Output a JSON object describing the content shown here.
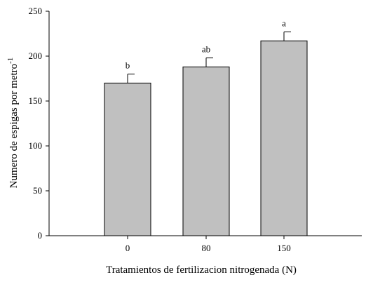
{
  "chart_data": {
    "type": "bar",
    "categories": [
      "0",
      "80",
      "150"
    ],
    "values": [
      170,
      188,
      217
    ],
    "errors": [
      10,
      10,
      10
    ],
    "significance_labels": [
      "b",
      "ab",
      "a"
    ],
    "title": "",
    "xlabel": "Tratamientos de fertilizacion nitrogenada (N)",
    "ylabel_main": "Numero de espigas por metro",
    "ylabel_superscript": "-1",
    "ylim": [
      0,
      250
    ],
    "yticks": [
      0,
      50,
      100,
      150,
      200,
      250
    ],
    "grid": false,
    "legend": "none",
    "colors": {
      "bar_fill": "#c0c0c0",
      "bar_stroke": "#000000",
      "axis": "#000000"
    }
  }
}
